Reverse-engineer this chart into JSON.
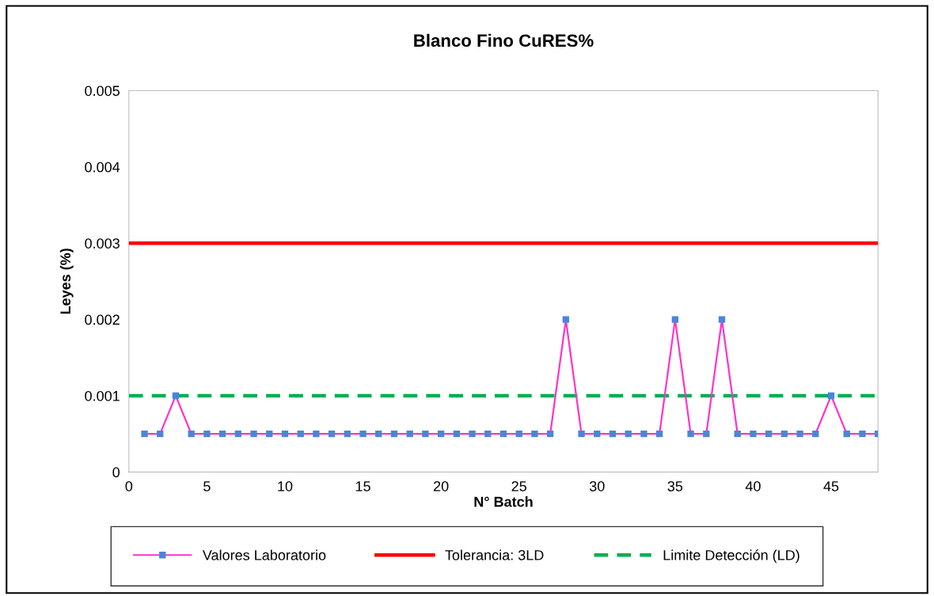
{
  "chart_data": {
    "type": "line",
    "title": "Blanco Fino CuRES%",
    "xlabel": "N° Batch",
    "ylabel": "Leyes (%)",
    "x": [
      1,
      2,
      3,
      4,
      5,
      6,
      7,
      8,
      9,
      10,
      11,
      12,
      13,
      14,
      15,
      16,
      17,
      18,
      19,
      20,
      21,
      22,
      23,
      24,
      25,
      26,
      27,
      28,
      29,
      30,
      31,
      32,
      33,
      34,
      35,
      36,
      37,
      38,
      39,
      40,
      41,
      42,
      43,
      44,
      45,
      46,
      47,
      48
    ],
    "series": [
      {
        "name": "Valores Laboratorio",
        "color": "#ff33cc",
        "values": [
          0.0005,
          0.0005,
          0.001,
          0.0005,
          0.0005,
          0.0005,
          0.0005,
          0.0005,
          0.0005,
          0.0005,
          0.0005,
          0.0005,
          0.0005,
          0.0005,
          0.0005,
          0.0005,
          0.0005,
          0.0005,
          0.0005,
          0.0005,
          0.0005,
          0.0005,
          0.0005,
          0.0005,
          0.0005,
          0.0005,
          0.0005,
          0.002,
          0.0005,
          0.0005,
          0.0005,
          0.0005,
          0.0005,
          0.0005,
          0.002,
          0.0005,
          0.0005,
          0.002,
          0.0005,
          0.0005,
          0.0005,
          0.0005,
          0.0005,
          0.0005,
          0.001,
          0.0005,
          0.0005,
          0.0005
        ]
      }
    ],
    "ref_lines": [
      {
        "axis": "y",
        "value": 0.003,
        "label": "Tolerancia: 3LD",
        "color": "#ff0000",
        "line_style": "solid"
      },
      {
        "axis": "y",
        "value": 0.001,
        "label": "Limite Detección (LD)",
        "color": "#00b050",
        "line_style": "dashed"
      }
    ],
    "xlim": [
      0,
      48
    ],
    "xticks": [
      0,
      5,
      10,
      15,
      20,
      25,
      30,
      35,
      40,
      45
    ],
    "ylim": [
      0,
      0.005
    ],
    "yticks": [
      0,
      0.001,
      0.002,
      0.003,
      0.004,
      0.005
    ],
    "marker": "square",
    "line_style": "solid",
    "grid": false,
    "legend": "bottom"
  }
}
